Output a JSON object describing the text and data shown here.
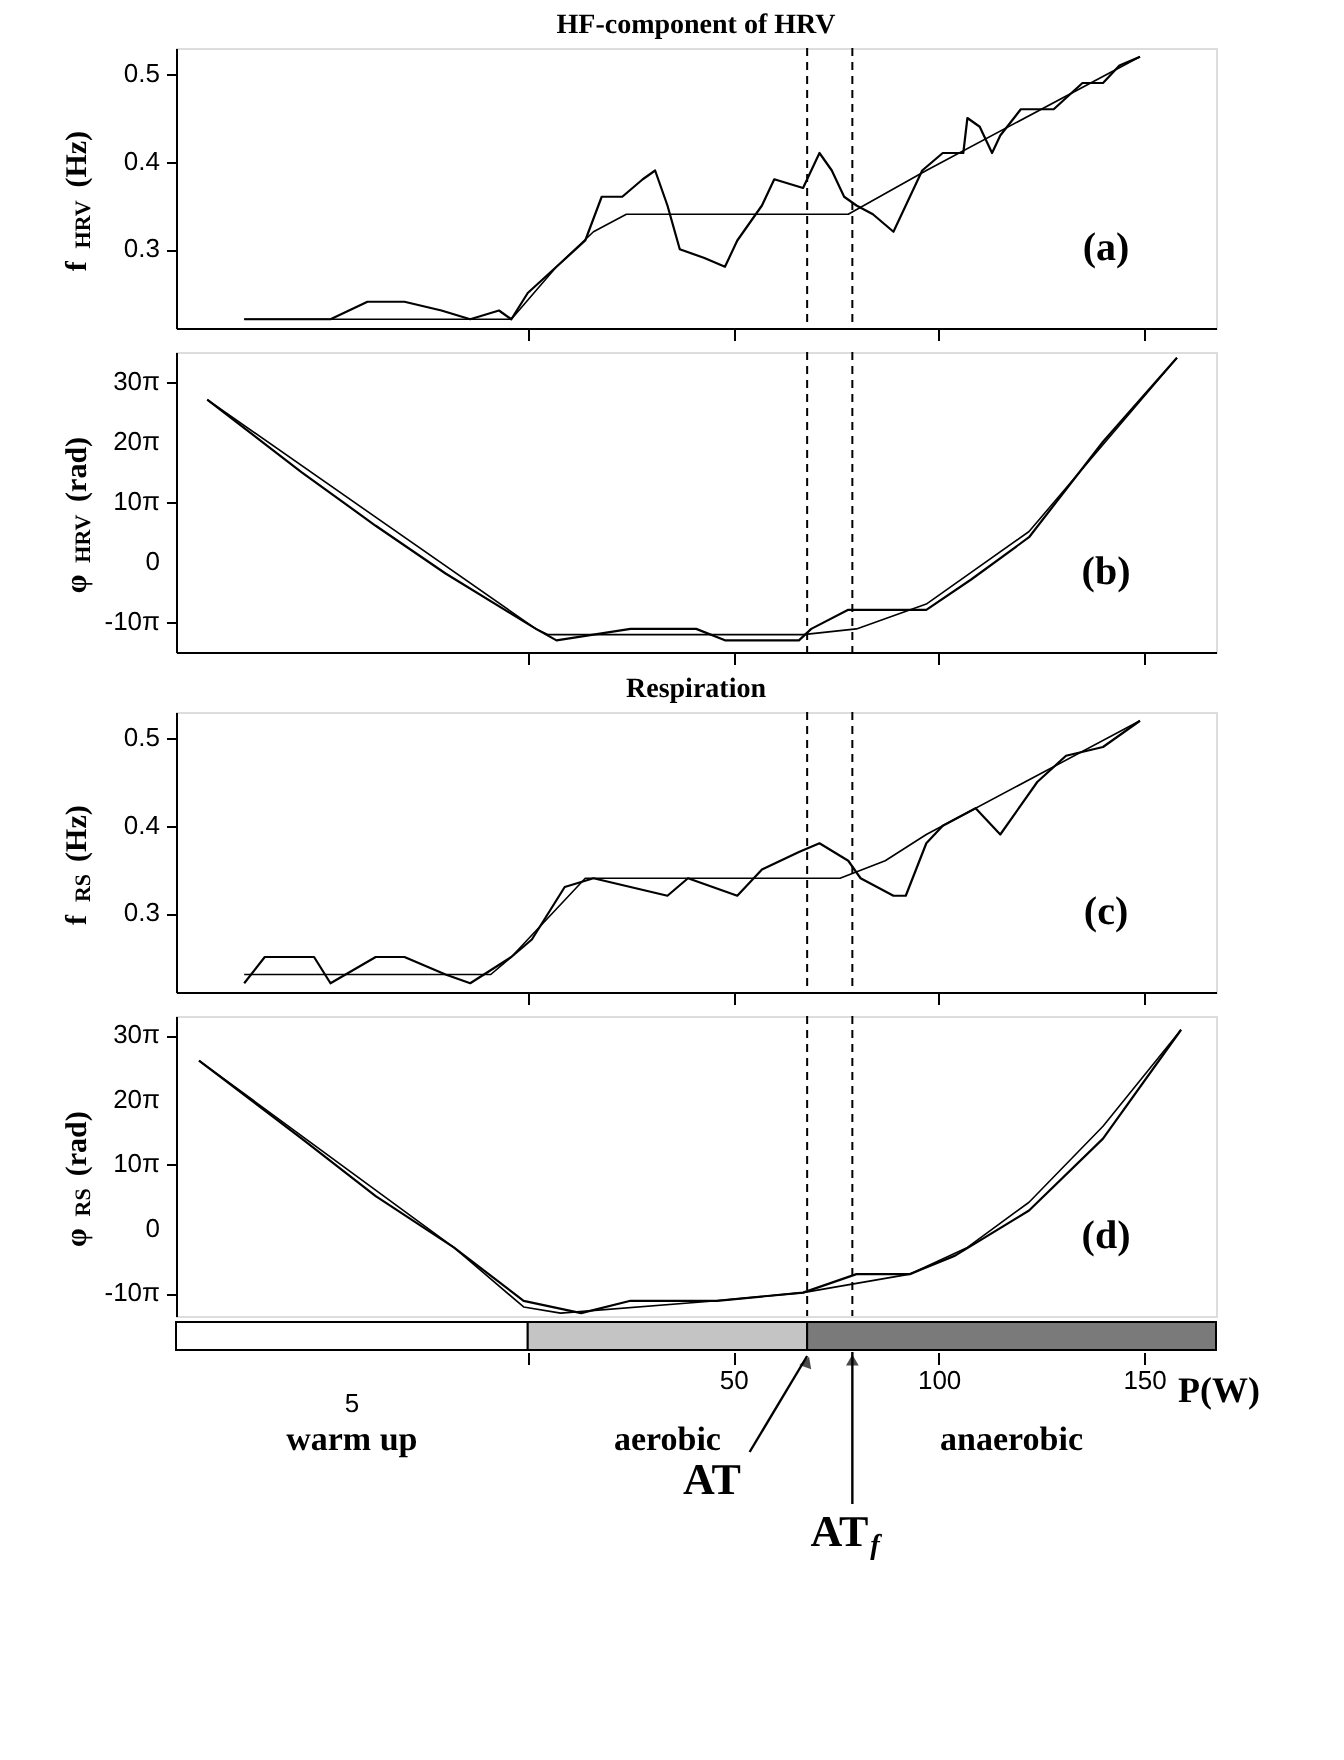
{
  "chart_data": [
    {
      "type": "line",
      "title": "HF-component of HRV",
      "ylabel": "f$_{HRV}$ (Hz)",
      "xlim": [
        -85.6,
        167.5
      ],
      "xticks": [
        {
          "value": 0,
          "label": null
        },
        {
          "value": 50,
          "label": null
        },
        {
          "value": 100,
          "label": null
        },
        {
          "value": 150,
          "label": null
        }
      ],
      "ylim": [
        0.21,
        0.53
      ],
      "yticks": [
        0.3,
        0.4,
        0.5
      ],
      "tick_labels": "y",
      "annotations": [
        "(a)"
      ],
      "ref_lines": [
        {
          "axis": "x",
          "value": 68,
          "color": "#000000",
          "line_style": "dashed"
        },
        {
          "axis": "x",
          "value": 79,
          "color": "#000000",
          "line_style": "dashed"
        }
      ],
      "series": [
        {
          "color": "#000000",
          "x": [
            -69,
            -58,
            -48,
            -39,
            -30,
            -21,
            -14,
            -7,
            -4,
            0,
            7,
            14,
            18,
            23,
            28,
            31,
            34,
            37,
            43,
            48,
            51,
            57,
            60,
            67,
            71,
            74,
            77,
            80,
            84,
            89,
            92,
            96,
            101,
            106,
            107,
            110,
            113,
            115,
            120,
            128,
            135,
            140,
            144,
            149
          ],
          "values": [
            0.22,
            0.22,
            0.22,
            0.24,
            0.24,
            0.23,
            0.22,
            0.23,
            0.22,
            0.25,
            0.28,
            0.31,
            0.36,
            0.36,
            0.38,
            0.39,
            0.35,
            0.3,
            0.29,
            0.28,
            0.31,
            0.35,
            0.38,
            0.37,
            0.41,
            0.39,
            0.36,
            0.35,
            0.34,
            0.32,
            0.35,
            0.39,
            0.41,
            0.41,
            0.45,
            0.44,
            0.41,
            0.43,
            0.46,
            0.46,
            0.49,
            0.49,
            0.51,
            0.52
          ]
        },
        {
          "color": "#000000",
          "x": [
            -69,
            -4,
            7,
            16,
            24,
            78,
            97,
            149
          ],
          "values": [
            0.22,
            0.22,
            0.28,
            0.32,
            0.34,
            0.34,
            0.39,
            0.52
          ]
        }
      ]
    },
    {
      "type": "line",
      "ylabel": "φ$_{HRV}$ (rad)",
      "xlim": [
        -85.6,
        167.5
      ],
      "xticks": [
        {
          "value": 0,
          "label": null
        },
        {
          "value": 50,
          "label": null
        },
        {
          "value": 100,
          "label": null
        },
        {
          "value": 150,
          "label": null
        }
      ],
      "ylim": [
        -47.1,
        110
      ],
      "yticks": [
        {
          "value": -31.42,
          "label": "-10π"
        },
        0,
        {
          "value": 31.42,
          "label": "10π"
        },
        {
          "value": 62.83,
          "label": "20π"
        },
        {
          "value": 94.25,
          "label": "30π"
        }
      ],
      "tick_labels": "y",
      "annotations": [
        "(b)"
      ],
      "ref_lines": [
        {
          "axis": "x",
          "value": 68,
          "color": "#000000",
          "line_style": "dashed"
        },
        {
          "axis": "x",
          "value": 79,
          "color": "#000000",
          "line_style": "dashed"
        }
      ],
      "series": [
        {
          "color": "#000000",
          "x": [
            -78,
            -55,
            -37,
            -20,
            2,
            7,
            25,
            41,
            48,
            57,
            66,
            69,
            78,
            87,
            97,
            108,
            122,
            140,
            158
          ],
          "values": [
            85,
            47,
            19,
            -6,
            -35,
            -41,
            -35,
            -35,
            -41,
            -41,
            -41,
            -35,
            -25,
            -25,
            -25,
            -9,
            13,
            63,
            107
          ]
        },
        {
          "color": "#000000",
          "x": [
            -78,
            2,
            5,
            67,
            80,
            97,
            122,
            158
          ],
          "values": [
            85,
            -35,
            -38,
            -38,
            -35,
            -22,
            16,
            107
          ]
        }
      ]
    },
    {
      "type": "line",
      "title": "Respiration",
      "ylabel": "f$_{RS}$ (Hz)",
      "xlim": [
        -85.6,
        167.5
      ],
      "xticks": [
        {
          "value": 0,
          "label": null
        },
        {
          "value": 50,
          "label": null
        },
        {
          "value": 100,
          "label": null
        },
        {
          "value": 150,
          "label": null
        }
      ],
      "ylim": [
        0.21,
        0.53
      ],
      "yticks": [
        0.3,
        0.4,
        0.5
      ],
      "tick_labels": "y",
      "annotations": [
        "(c)"
      ],
      "ref_lines": [
        {
          "axis": "x",
          "value": 68,
          "color": "#000000",
          "line_style": "dashed"
        },
        {
          "axis": "x",
          "value": 79,
          "color": "#000000",
          "line_style": "dashed"
        }
      ],
      "series": [
        {
          "color": "#000000",
          "x": [
            -69,
            -64,
            -52,
            -48,
            -37,
            -30,
            -20,
            -14,
            -4,
            1,
            9,
            16,
            25,
            34,
            39,
            51,
            57,
            66,
            71,
            78,
            81,
            89,
            92,
            97,
            101,
            109,
            115,
            124,
            131,
            140,
            149
          ],
          "values": [
            0.22,
            0.25,
            0.25,
            0.22,
            0.25,
            0.25,
            0.23,
            0.22,
            0.25,
            0.27,
            0.33,
            0.34,
            0.33,
            0.32,
            0.34,
            0.32,
            0.35,
            0.37,
            0.38,
            0.36,
            0.34,
            0.32,
            0.32,
            0.38,
            0.4,
            0.42,
            0.39,
            0.45,
            0.48,
            0.49,
            0.52
          ]
        },
        {
          "color": "#000000",
          "x": [
            -69,
            -9,
            -4,
            8,
            14,
            76,
            87,
            97,
            149
          ],
          "values": [
            0.23,
            0.23,
            0.25,
            0.31,
            0.34,
            0.34,
            0.36,
            0.39,
            0.52
          ]
        }
      ]
    },
    {
      "type": "line",
      "ylabel": "φ$_{RS}$ (rad)",
      "xlabel": "P(W)",
      "xlim": [
        -85.6,
        167.5
      ],
      "xticks": [
        {
          "value": 0,
          "label": null
        },
        50,
        100,
        150
      ],
      "ylim": [
        -42.4,
        103.7
      ],
      "yticks": [
        {
          "value": -31.42,
          "label": "-10π"
        },
        0,
        {
          "value": 31.42,
          "label": "10π"
        },
        {
          "value": 62.83,
          "label": "20π"
        },
        {
          "value": 94.25,
          "label": "30π"
        }
      ],
      "annotations": [
        "(d)",
        "5",
        "warm up",
        "aerobic",
        "anaerobic",
        "AT",
        "AT$_{f}$"
      ],
      "ref_lines": [
        {
          "axis": "x",
          "value": 68,
          "color": "#000000",
          "line_style": "dashed"
        },
        {
          "axis": "x",
          "value": 79,
          "color": "#000000",
          "line_style": "dashed"
        }
      ],
      "series": [
        {
          "color": "#000000",
          "x": [
            -80,
            -55,
            -37,
            -18,
            -1,
            13,
            25,
            46,
            67,
            80,
            93,
            104,
            122,
            140,
            159
          ],
          "values": [
            82,
            44,
            16,
            -9,
            -35,
            -41,
            -35,
            -35,
            -31,
            -22,
            -22,
            -13,
            9,
            44,
            97
          ]
        },
        {
          "color": "#000000",
          "x": [
            -80,
            -18,
            -1,
            8,
            46,
            67,
            93,
            107,
            122,
            140,
            159
          ],
          "values": [
            82,
            -9,
            -38,
            -41,
            -35,
            -31,
            -22,
            -9,
            13,
            50,
            97
          ]
        }
      ]
    }
  ]
}
